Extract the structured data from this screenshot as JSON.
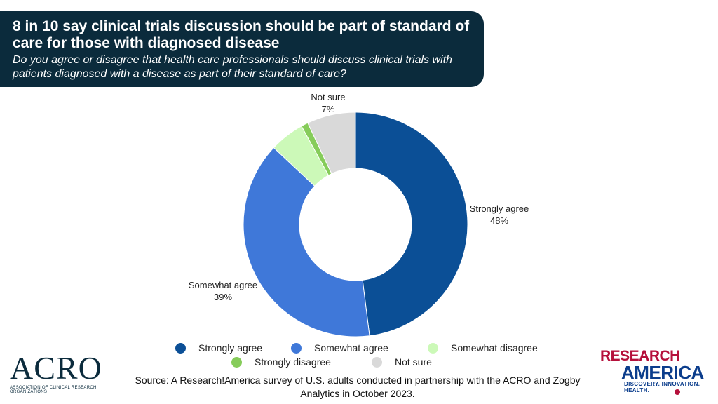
{
  "header": {
    "title": "8 in 10 say clinical trials discussion should be part of standard of care for those with diagnosed disease",
    "subtitle": "Do you agree or disagree that health care professionals should discuss clinical trials with patients diagnosed with a disease as part of their standard of care?"
  },
  "chart_data": {
    "type": "pie",
    "donut": true,
    "slices": [
      {
        "label": "Strongly agree",
        "value": 48,
        "display": "48%",
        "color": "#0b4f96"
      },
      {
        "label": "Somewhat agree",
        "value": 39,
        "display": "39%",
        "color": "#3f78d9"
      },
      {
        "label": "Somewhat disagree",
        "value": 5,
        "display": "",
        "color": "#ccf9b8"
      },
      {
        "label": "Strongly disagree",
        "value": 1,
        "display": "",
        "color": "#86cc5a"
      },
      {
        "label": "Not sure",
        "value": 7,
        "display": "7%",
        "color": "#d9d9d9"
      }
    ],
    "legend_placement": "bottom"
  },
  "source": "Source: A Research!America survey of U.S. adults conducted in partnership with the ACRO and Zogby Analytics in October 2023.",
  "logos": {
    "acro_mark": "ACRO",
    "acro_sub": "ASSOCIATION OF CLINICAL RESEARCH ORGANIZATIONS",
    "ra_line1": "RESEARCH",
    "ra_line2": "AMERICA",
    "ra_tag": "DISCOVERY. INNOVATION. HEALTH."
  }
}
